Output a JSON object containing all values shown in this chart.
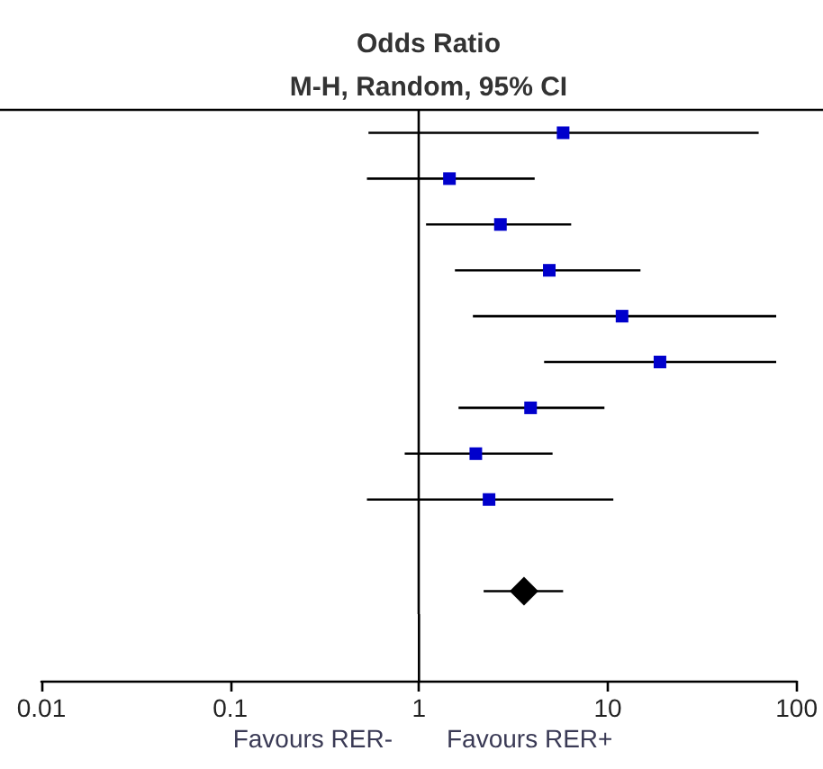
{
  "chart_data": {
    "type": "scatter",
    "orientation": "horizontal",
    "title": "Odds Ratio",
    "subtitle": "M-H, Random, 95% CI",
    "annotations": [
      "Favours RER-",
      "Favours RER+"
    ],
    "categories": [
      null,
      null,
      null,
      null,
      null,
      null,
      null,
      null,
      null,
      null,
      null
    ],
    "log": "x",
    "xlim": [
      0.01,
      100
    ],
    "xticks": [
      0.01,
      0.1,
      1,
      10,
      100
    ],
    "ref_lines": [
      {
        "axis": "x",
        "value": 1,
        "color": "#000000"
      }
    ],
    "series": [
      {
        "color": "#0000cc",
        "marker": "square",
        "values": [
          5.8,
          1.45,
          2.7,
          4.9,
          11.9,
          18.9,
          3.9,
          2.0,
          2.35,
          null,
          null
        ],
        "errors": [
          [
            0.54,
            63
          ],
          [
            0.53,
            4.1
          ],
          [
            1.09,
            6.4
          ],
          [
            1.55,
            14.9
          ],
          [
            1.93,
            78
          ],
          [
            4.6,
            78
          ],
          [
            1.62,
            9.6
          ],
          [
            0.84,
            5.1
          ],
          [
            0.53,
            10.7
          ],
          null,
          null
        ]
      },
      {
        "color": "#000000",
        "marker": "diamond",
        "values": [
          null,
          null,
          null,
          null,
          null,
          null,
          null,
          null,
          null,
          null,
          3.6
        ],
        "errors": [
          null,
          null,
          null,
          null,
          null,
          null,
          null,
          null,
          null,
          null,
          [
            2.2,
            5.8
          ]
        ]
      }
    ]
  }
}
